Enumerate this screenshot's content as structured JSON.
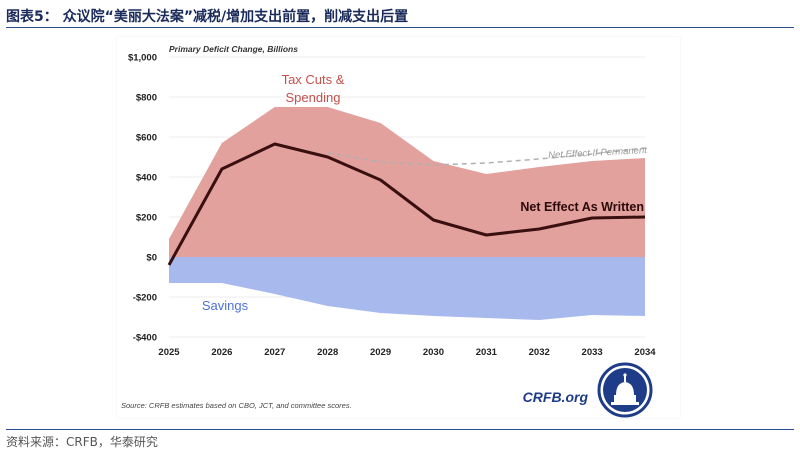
{
  "header": {
    "title": "图表5：  众议院“美丽大法案”减税/增加支出前置，削减支出后置"
  },
  "footer": {
    "source": "资料来源：CRFB，华泰研究"
  },
  "chart_data": {
    "type": "area",
    "title": "Primary Deficit Change, Billions",
    "x": [
      "2025",
      "2026",
      "2027",
      "2028",
      "2029",
      "2030",
      "2031",
      "2032",
      "2033",
      "2034"
    ],
    "ylim": [
      -400,
      1000
    ],
    "yticks": [
      1000,
      800,
      600,
      400,
      200,
      0,
      -200,
      -400
    ],
    "ytick_labels": [
      "$1,000",
      "$800",
      "$600",
      "$400",
      "$200",
      "$0",
      "-$200",
      "-$400"
    ],
    "series": [
      {
        "name": "Tax Cuts & Spending",
        "kind": "area",
        "color": "#e3a19d",
        "values": [
          90,
          570,
          750,
          750,
          670,
          480,
          415,
          450,
          480,
          495
        ]
      },
      {
        "name": "Savings",
        "kind": "area",
        "color": "#a8b9ee",
        "values": [
          -130,
          -130,
          -185,
          -245,
          -280,
          -295,
          -305,
          -315,
          -290,
          -295
        ]
      },
      {
        "name": "Net Effect As Written",
        "kind": "line",
        "color": "#3a0f0f",
        "values": [
          -40,
          440,
          565,
          500,
          385,
          185,
          110,
          140,
          195,
          200
        ]
      },
      {
        "name": "Net Effect If Permanent",
        "kind": "dashed-line",
        "color": "#b0b0b0",
        "x_start": "2028",
        "values": [
          null,
          null,
          null,
          520,
          475,
          460,
          470,
          490,
          515,
          545
        ]
      }
    ],
    "annotations": {
      "tax_cuts_line1": "Tax Cuts &",
      "tax_cuts_line2": "Spending",
      "savings": "Savings",
      "net_written": "Net Effect As Written",
      "net_permanent": "Net Effect If Permanent"
    },
    "source_note": "Source: CRFB estimates based on CBO, JCT, and committee scores.",
    "logo_text": "CRFB.org"
  }
}
